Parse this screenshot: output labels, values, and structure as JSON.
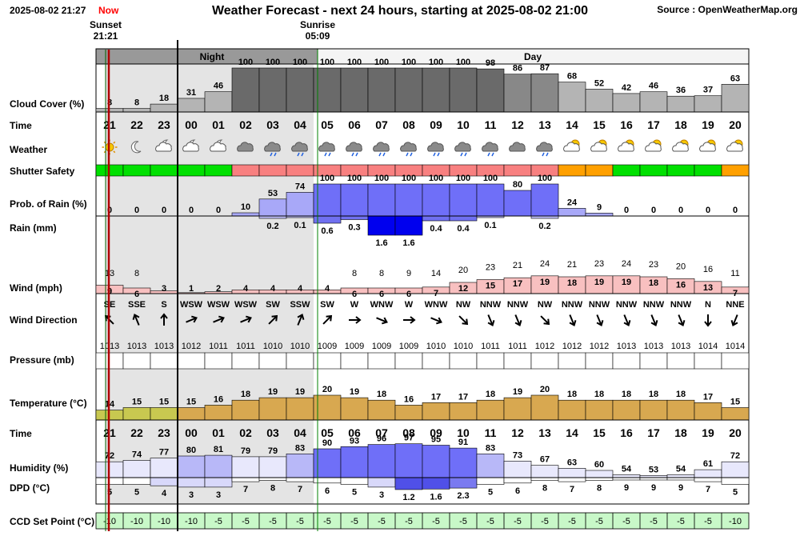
{
  "header": {
    "timestamp": "2025-08-02 21:27",
    "now_label": "Now",
    "title": "Weather Forecast - next 24 hours, starting at 2025-08-02 21:00",
    "source": "Source : OpenWeatherMap.org",
    "sunset_label": "Sunset",
    "sunset_time": "21:21",
    "sunrise_label": "Sunrise",
    "sunrise_time": "05:09",
    "night_label": "Night",
    "day_label": "Day"
  },
  "row_labels": {
    "cloud": "Cloud Cover (%)",
    "time": "Time",
    "weather": "Weather",
    "shutter": "Shutter Safety",
    "prob_rain": "Prob. of Rain (%)",
    "rain": "Rain (mm)",
    "wind": "Wind (mph)",
    "wind_dir": "Wind Direction",
    "pressure": "Pressure (mb)",
    "temperature": "Temperature (°C)",
    "time2": "Time",
    "humidity": "Humidity (%)",
    "dpd": "DPD (°C)",
    "ccd": "CCD Set Point (°C)"
  },
  "colors": {
    "now_text": "#ff0000",
    "sunset_line": "#b00000",
    "sunrise_line": "#008000",
    "night_shade": "#e4e4e4",
    "shutter_green": "#00e000",
    "shutter_red": "#f88080",
    "shutter_orange": "#ffa000",
    "rain_prob": "#6f6ff8",
    "rain_amount": "#0000ee",
    "wind_bar": "#f8c0c0",
    "temperature": "#d8a850",
    "temperature_cool": "#c8c850",
    "humidity": "#6f6ff8",
    "ccd_bg": "#c8f8c8"
  },
  "chart_data": {
    "type": "table",
    "hours": [
      "21",
      "22",
      "23",
      "00",
      "01",
      "02",
      "03",
      "04",
      "05",
      "06",
      "07",
      "08",
      "09",
      "10",
      "11",
      "12",
      "13",
      "14",
      "15",
      "16",
      "17",
      "18",
      "19",
      "20"
    ],
    "period": [
      "night",
      "night",
      "night",
      "night",
      "night",
      "night",
      "night",
      "night",
      "day",
      "day",
      "day",
      "day",
      "day",
      "day",
      "day",
      "day",
      "day",
      "day",
      "day",
      "day",
      "day",
      "day",
      "day",
      "day"
    ],
    "cloud_cover": [
      8,
      8,
      18,
      31,
      46,
      100,
      100,
      100,
      100,
      100,
      100,
      100,
      100,
      100,
      98,
      86,
      87,
      68,
      52,
      42,
      46,
      36,
      37,
      63
    ],
    "weather_icons": [
      "sun-icon",
      "moon-icon",
      "moon-cloud-icon",
      "moon-cloud-icon",
      "moon-cloud-icon",
      "cloud-icon",
      "cloud-rain-icon",
      "cloud-rain-icon",
      "cloud-rain-icon",
      "cloud-rain-icon",
      "cloud-rain-icon",
      "cloud-rain-icon",
      "cloud-rain-icon",
      "cloud-rain-icon",
      "cloud-rain-icon",
      "cloud-icon",
      "cloud-rain-icon",
      "sun-cloud-icon",
      "sun-cloud-icon",
      "sun-cloud-icon",
      "sun-cloud-icon",
      "sun-cloud-icon",
      "sun-cloud-icon",
      "sun-cloud-icon"
    ],
    "shutter_safety": [
      "green",
      "green",
      "green",
      "green",
      "green",
      "red",
      "red",
      "red",
      "red",
      "red",
      "red",
      "red",
      "red",
      "red",
      "red",
      "red",
      "red",
      "orange",
      "orange",
      "green",
      "green",
      "green",
      "green",
      "orange"
    ],
    "prob_rain": [
      0,
      0,
      0,
      0,
      0,
      10,
      53,
      74,
      100,
      100,
      100,
      100,
      100,
      100,
      100,
      80,
      100,
      24,
      9,
      0,
      0,
      0,
      0,
      0
    ],
    "rain_mm": [
      "",
      "",
      "",
      "",
      "",
      "",
      "0.2",
      "0.1",
      "0.6",
      "0.3",
      "1.6",
      "1.6",
      "0.4",
      "0.4",
      "0.1",
      "",
      "0.2",
      "",
      "",
      "",
      "",
      "",
      "",
      ""
    ],
    "wind_speed": [
      9,
      6,
      3,
      1,
      2,
      4,
      4,
      4,
      4,
      6,
      6,
      6,
      7,
      12,
      15,
      17,
      19,
      18,
      19,
      19,
      18,
      16,
      13,
      7
    ],
    "wind_gust": [
      "13",
      "8",
      "",
      "",
      "",
      "",
      "",
      "",
      "",
      "8",
      "8",
      "9",
      "14",
      "20",
      "23",
      "21",
      "24",
      "21",
      "23",
      "24",
      "23",
      "20",
      "16",
      "11"
    ],
    "wind_direction": [
      "SE",
      "SSE",
      "S",
      "WSW",
      "WSW",
      "WSW",
      "SW",
      "SSW",
      "SW",
      "W",
      "WNW",
      "W",
      "WNW",
      "NW",
      "NNW",
      "NNW",
      "NW",
      "NNW",
      "NNW",
      "NNW",
      "NNW",
      "NNW",
      "N",
      "NNE"
    ],
    "pressure": [
      1013,
      1013,
      1013,
      1012,
      1011,
      1011,
      1010,
      1010,
      1009,
      1009,
      1009,
      1009,
      1010,
      1010,
      1011,
      1011,
      1012,
      1012,
      1012,
      1013,
      1013,
      1013,
      1014,
      1014
    ],
    "temperature": [
      14,
      15,
      15,
      15,
      16,
      18,
      19,
      19,
      20,
      19,
      18,
      16,
      17,
      17,
      18,
      19,
      20,
      18,
      18,
      18,
      18,
      18,
      17,
      15
    ],
    "humidity": [
      72,
      74,
      77,
      80,
      81,
      79,
      79,
      83,
      90,
      93,
      96,
      97,
      95,
      91,
      83,
      73,
      67,
      63,
      60,
      54,
      53,
      54,
      61,
      72
    ],
    "dpd": [
      "5",
      "5",
      "4",
      "3",
      "3",
      "7",
      "8",
      "7",
      "6",
      "5",
      "3",
      "1.2",
      "1.6",
      "2.3",
      "5",
      "6",
      "8",
      "7",
      "8",
      "9",
      "9",
      "9",
      "7",
      "5"
    ],
    "ccd_set_point": [
      -10,
      -10,
      -10,
      -10,
      -5,
      -5,
      -5,
      -5,
      -5,
      -5,
      -5,
      -5,
      -5,
      -5,
      -5,
      -5,
      -5,
      -5,
      -5,
      -5,
      -5,
      -5,
      -5,
      -10
    ]
  }
}
